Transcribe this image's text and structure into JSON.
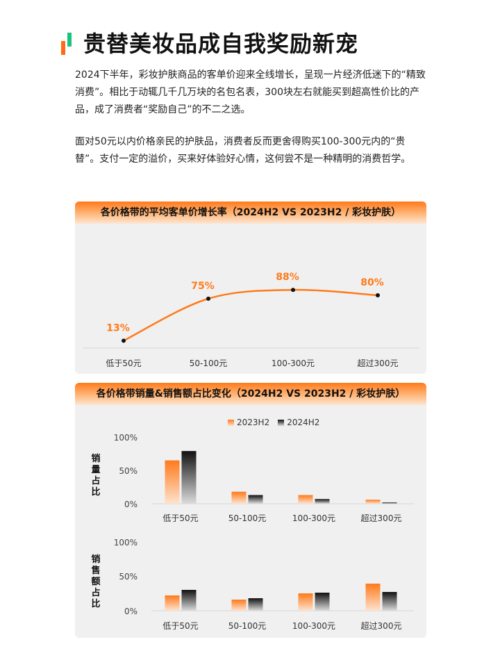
{
  "title": "贵替美妆品成自我奖励新宠",
  "paragraphs": [
    "2024下半年，彩妆护肤商品的客单价迎来全线增长，呈现一片经济低迷下的“精致消费”。相比于动辄几千几万块的名包名表，300块左右就能买到超高性价比的产品，成了消费者“奖励自己”的不二之选。",
    "面对50元以内价格亲民的护肤品，消费者反而更舍得购买100-300元内的“贵替”。支付一定的溢价，买来好体验好心情，这何尝不是一种精明的消费哲学。"
  ],
  "colors": {
    "accent_orange": "#ff6a1a",
    "accent_green": "#19c37d",
    "series_2023": "#ff7a1a",
    "series_2024": "#111111"
  },
  "chart_data": [
    {
      "type": "line",
      "title": "各价格带的平均客单价增长率（2024H2 VS 2023H2 / 彩妆护肤）",
      "categories": [
        "低于50元",
        "50-100元",
        "100-300元",
        "超过300元"
      ],
      "values": [
        13,
        75,
        88,
        80
      ],
      "data_labels": [
        "13%",
        "75%",
        "88%",
        "80%"
      ],
      "unit": "%",
      "ylim": [
        0,
        100
      ],
      "grid": false
    },
    {
      "type": "bar",
      "title": "各价格带销量&销售额占比变化（2024H2 VS 2023H2 / 彩妆护肤）",
      "legend_position": "top",
      "categories": [
        "低于50元",
        "50-100元",
        "100-300元",
        "超过300元"
      ],
      "subcharts": [
        {
          "ylabel": "销量占比",
          "yticks": [
            "100%",
            "50%",
            "0%"
          ],
          "ylim": [
            0,
            100
          ],
          "series": [
            {
              "name": "2023H2",
              "values": [
                65,
                18,
                13,
                6
              ]
            },
            {
              "name": "2024H2",
              "values": [
                79,
                13,
                7,
                2
              ]
            }
          ]
        },
        {
          "ylabel": "销售额占比",
          "yticks": [
            "100%",
            "50%",
            "0%"
          ],
          "ylim": [
            0,
            100
          ],
          "series": [
            {
              "name": "2023H2",
              "values": [
                22,
                16,
                25,
                39
              ]
            },
            {
              "name": "2024H2",
              "values": [
                30,
                18,
                26,
                27
              ]
            }
          ]
        }
      ]
    }
  ]
}
